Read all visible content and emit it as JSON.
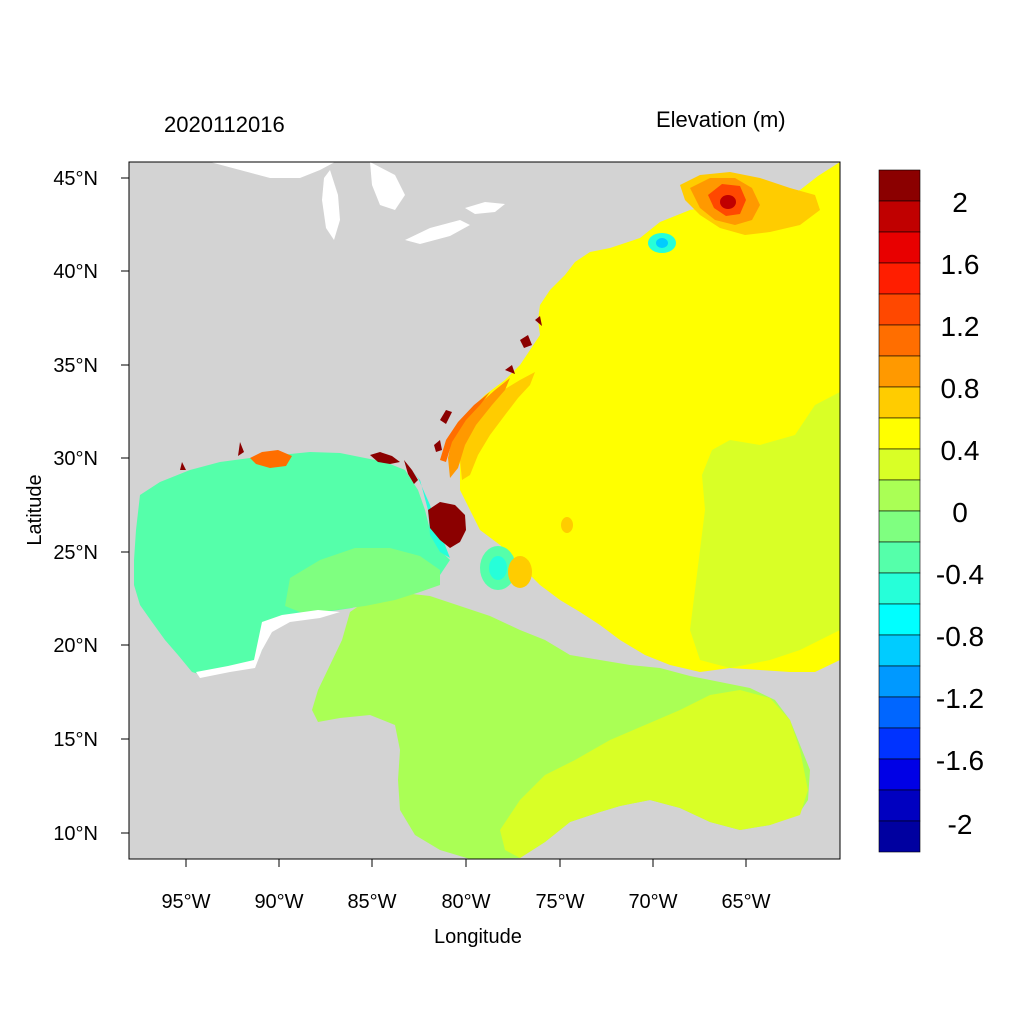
{
  "figure": {
    "left_title": "2020112016",
    "right_title": "Elevation (m)",
    "xlabel": "Longitude",
    "ylabel": "Latitude"
  },
  "map": {
    "lon_range": [
      -98,
      -60
    ],
    "lat_range": [
      8.5,
      46
    ],
    "lon_ticks": [
      "95°W",
      "90°W",
      "85°W",
      "80°W",
      "75°W",
      "70°W",
      "65°W"
    ],
    "lat_ticks": [
      "45°N",
      "40°N",
      "35°N",
      "30°N",
      "25°N",
      "20°N",
      "15°N",
      "10°N"
    ],
    "land_color": "#d3d3d3"
  },
  "colorbar": {
    "labels": [
      "2",
      "1.6",
      "1.2",
      "0.8",
      "0.4",
      "0",
      "-0.4",
      "-0.8",
      "-1.2",
      "-1.6",
      "-2"
    ],
    "colors_top_to_bottom": [
      "#8b0000",
      "#c00000",
      "#e80000",
      "#ff1e00",
      "#ff4800",
      "#ff6e00",
      "#ff9900",
      "#ffcc00",
      "#ffff00",
      "#d9ff26",
      "#aaff55",
      "#7fff80",
      "#55ffaa",
      "#26ffd9",
      "#00ffff",
      "#00ccff",
      "#0099ff",
      "#0066ff",
      "#0033ff",
      "#0000e6",
      "#0000c0",
      "#0000a0"
    ]
  }
}
